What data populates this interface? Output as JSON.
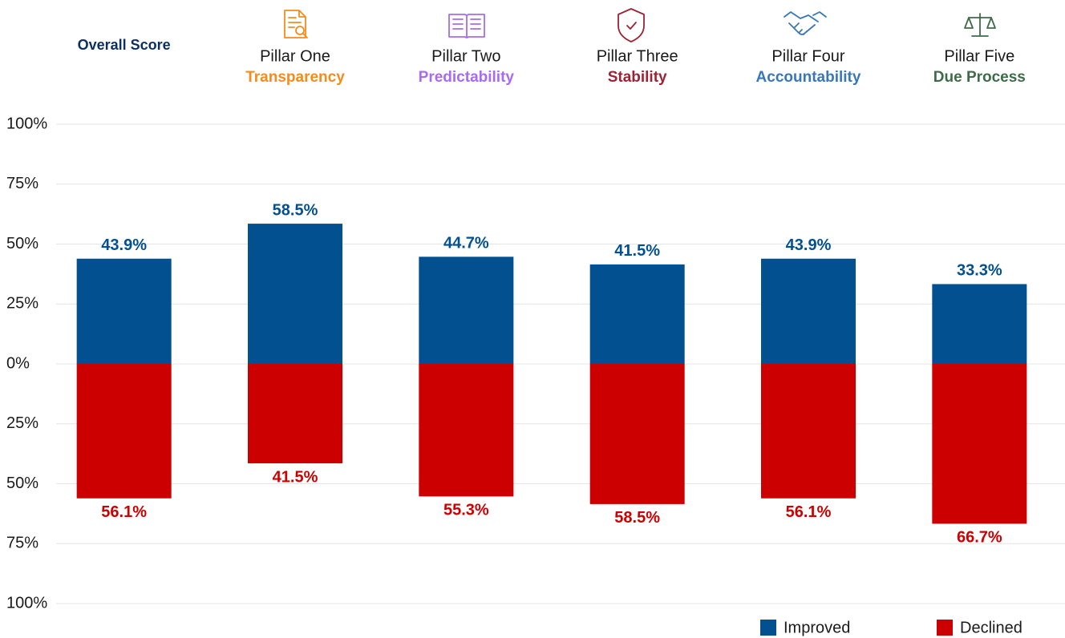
{
  "chart_data": {
    "type": "bar",
    "categories": [
      "Overall Score",
      "Pillar One",
      "Pillar Two",
      "Pillar Three",
      "Pillar Four",
      "Pillar Five"
    ],
    "category_subtitles": [
      null,
      "Transparency",
      "Predictability",
      "Stability",
      "Accountability",
      "Due Process"
    ],
    "category_subtitle_colors": [
      null,
      "#f28c1c",
      "#a66bf0",
      "#9b2335",
      "#3a78b5",
      "#3f6b4a"
    ],
    "series": [
      {
        "name": "Improved",
        "color": "#02508f",
        "values": [
          43.9,
          58.5,
          44.7,
          41.5,
          43.9,
          33.3
        ],
        "value_labels": [
          "43.9%",
          "58.5%",
          "44.7%",
          "41.5%",
          "43.9%",
          "33.3%"
        ]
      },
      {
        "name": "Declined",
        "color": "#cc0000",
        "values": [
          -56.1,
          -41.5,
          -55.3,
          -58.5,
          -56.1,
          -66.7
        ],
        "value_labels": [
          "56.1%",
          "41.5%",
          "55.3%",
          "58.5%",
          "56.1%",
          "66.7%"
        ]
      }
    ],
    "ylim": [
      -100,
      100
    ],
    "yticks": [
      {
        "value": 100,
        "label": "100%"
      },
      {
        "value": 75,
        "label": "75%"
      },
      {
        "value": 50,
        "label": "50%"
      },
      {
        "value": 25,
        "label": "25%"
      },
      {
        "value": 0,
        "label": "0%"
      },
      {
        "value": -25,
        "label": "25%"
      },
      {
        "value": -50,
        "label": "50%"
      },
      {
        "value": -75,
        "label": "75%"
      },
      {
        "value": -100,
        "label": "100%"
      }
    ],
    "grid": true,
    "legend": "bottom-right"
  }
}
